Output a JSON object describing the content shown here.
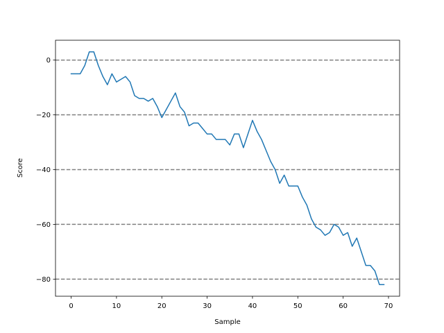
{
  "chart_data": {
    "type": "line",
    "title": "",
    "xlabel": "Sample",
    "ylabel": "Score",
    "xlim": [
      -3.45,
      72.45
    ],
    "ylim": [
      -86.25,
      7.25
    ],
    "xticks": [
      0,
      10,
      20,
      30,
      40,
      50,
      60,
      70
    ],
    "yticks": [
      0,
      -20,
      -40,
      -60,
      -80
    ],
    "ytick_labels": [
      "0",
      "−20",
      "−40",
      "−60",
      "−80"
    ],
    "reference_lines": [
      0,
      -20,
      -40,
      -60,
      -80
    ],
    "series": [
      {
        "name": "score",
        "color": "#1f77b4",
        "x": [
          0,
          1,
          2,
          3,
          4,
          5,
          6,
          7,
          8,
          9,
          10,
          11,
          12,
          13,
          14,
          15,
          16,
          17,
          18,
          19,
          20,
          21,
          22,
          23,
          24,
          25,
          26,
          27,
          28,
          29,
          30,
          31,
          32,
          33,
          34,
          35,
          36,
          37,
          38,
          39,
          40,
          41,
          42,
          43,
          44,
          45,
          46,
          47,
          48,
          49,
          50,
          51,
          52,
          53,
          54,
          55,
          56,
          57,
          58,
          59,
          60,
          61,
          62,
          63,
          64,
          65,
          66,
          67,
          68,
          69
        ],
        "values": [
          -5,
          -5,
          -5,
          -2,
          3,
          3,
          -2,
          -6,
          -9,
          -5,
          -8,
          -7,
          -6,
          -8,
          -13,
          -14,
          -14,
          -15,
          -14,
          -17,
          -21,
          -18,
          -15,
          -12,
          -17,
          -19,
          -24,
          -23,
          -23,
          -25,
          -27,
          -27,
          -29,
          -29,
          -29,
          -31,
          -27,
          -27,
          -32,
          -27,
          -22,
          -26,
          -29,
          -33,
          -37,
          -40,
          -45,
          -42,
          -46,
          -46,
          -46,
          -50,
          -53,
          -58,
          -61,
          -62,
          -64,
          -63,
          -60,
          -61,
          -64,
          -63,
          -68,
          -65,
          -70,
          -75,
          -75,
          -77,
          -82,
          -82
        ]
      }
    ],
    "colors": {
      "reference_line": "#808080",
      "axes": "#000000"
    }
  }
}
